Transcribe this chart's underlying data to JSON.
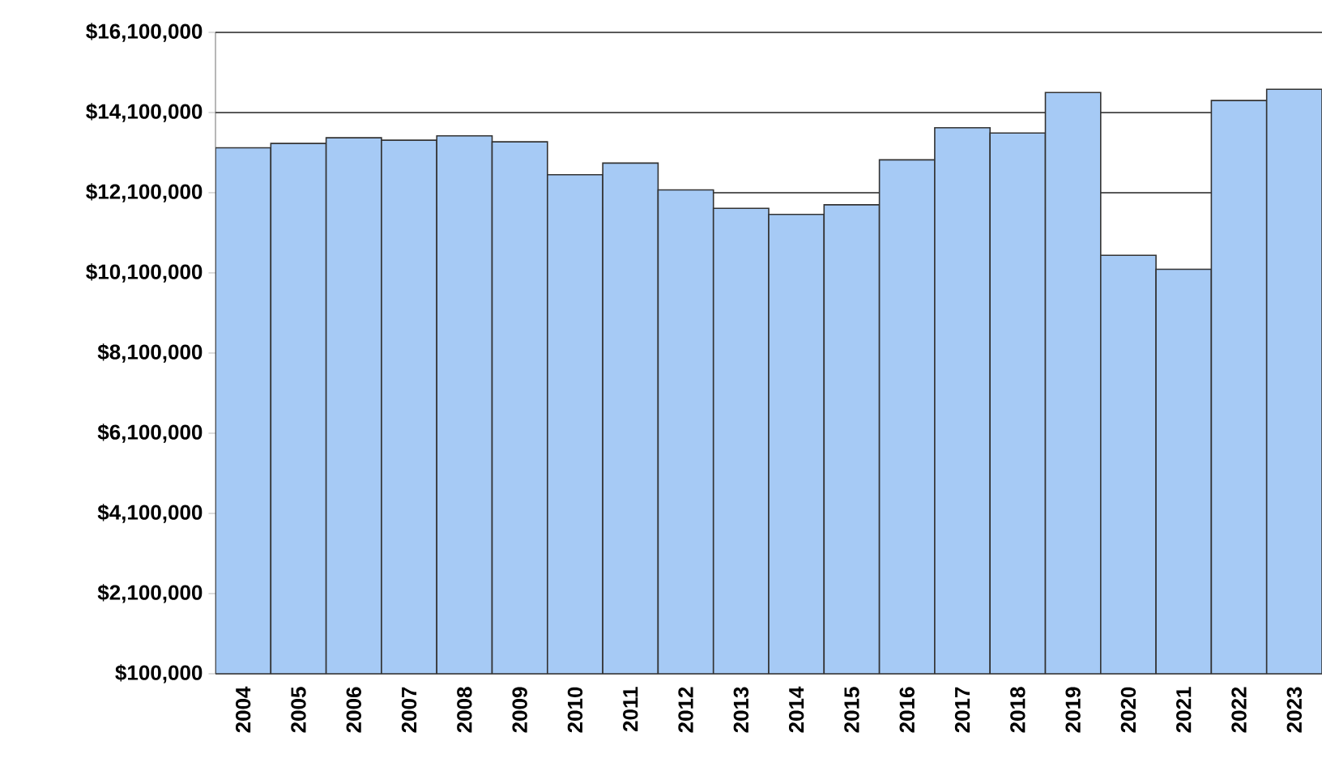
{
  "chart_data": {
    "type": "bar",
    "categories": [
      "2004",
      "2005",
      "2006",
      "2007",
      "2008",
      "2009",
      "2010",
      "2011",
      "2012",
      "2013",
      "2014",
      "2015",
      "2016",
      "2017",
      "2018",
      "2019",
      "2020",
      "2021",
      "2022",
      "2023"
    ],
    "values": [
      13220000,
      13330000,
      13470000,
      13410000,
      13520000,
      13370000,
      12550000,
      12840000,
      12170000,
      11710000,
      11560000,
      11800000,
      12920000,
      13720000,
      13590000,
      14600000,
      10540000,
      10190000,
      14400000,
      14680000
    ],
    "color": "#a6caf5",
    "ylim": [
      100000,
      16100000
    ],
    "yticks": [
      {
        "value": 100000,
        "label": "$100,000"
      },
      {
        "value": 2100000,
        "label": "$2,100,000"
      },
      {
        "value": 4100000,
        "label": "$4,100,000"
      },
      {
        "value": 6100000,
        "label": "$6,100,000"
      },
      {
        "value": 8100000,
        "label": "$8,100,000"
      },
      {
        "value": 10100000,
        "label": "$10,100,000"
      },
      {
        "value": 12100000,
        "label": "$12,100,000"
      },
      {
        "value": 14100000,
        "label": "$14,100,000"
      },
      {
        "value": 16100000,
        "label": "$16,100,000"
      }
    ],
    "grid": "y"
  }
}
